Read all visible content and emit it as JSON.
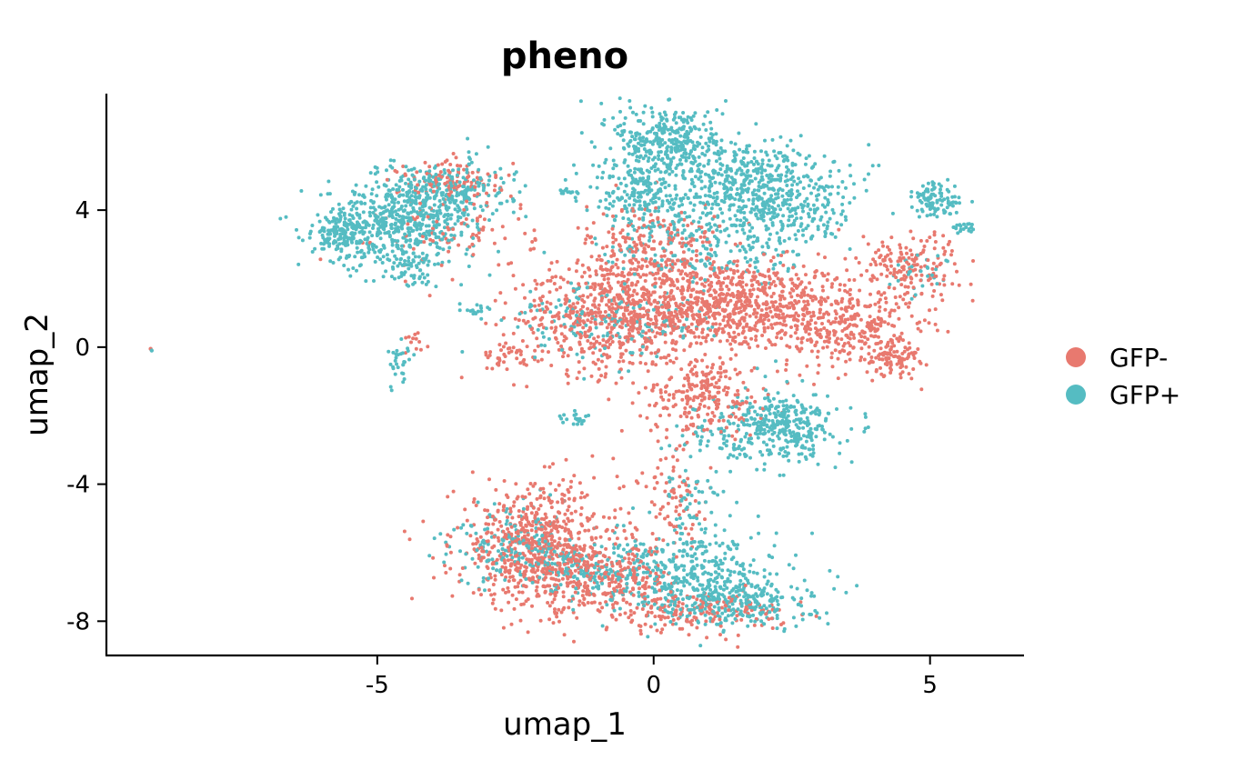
{
  "chart_data": {
    "type": "scatter",
    "title": "pheno",
    "xlabel": "umap_1",
    "ylabel": "umap_2",
    "xlim": [
      -9.9,
      6.7
    ],
    "ylim": [
      -9.0,
      7.4
    ],
    "xticks": [
      -5,
      0,
      5
    ],
    "xtick_labels": [
      "-5",
      "0",
      "5"
    ],
    "yticks": [
      -8,
      -4,
      0,
      4
    ],
    "ytick_labels": [
      "-8",
      "-4",
      "0",
      "4"
    ],
    "grid": false,
    "legend_position": "right",
    "series": [
      {
        "name": "GFP-",
        "color": "#E8796F",
        "clusters": [
          {
            "cx": 1.2,
            "cy": 1.2,
            "sx": 1.3,
            "sy": 0.65,
            "n": 1000
          },
          {
            "cx": -0.9,
            "cy": 0.8,
            "sx": 0.8,
            "sy": 0.8,
            "n": 400
          },
          {
            "cx": 3.6,
            "cy": 0.5,
            "sx": 0.6,
            "sy": 0.6,
            "n": 250
          },
          {
            "cx": 4.3,
            "cy": -0.3,
            "sx": 0.25,
            "sy": 0.25,
            "n": 90
          },
          {
            "cx": 0.0,
            "cy": 2.8,
            "sx": 0.6,
            "sy": 0.7,
            "n": 250
          },
          {
            "cx": 0.9,
            "cy": -1.4,
            "sx": 0.55,
            "sy": 0.6,
            "n": 250
          },
          {
            "cx": -2.1,
            "cy": -5.8,
            "sx": 0.75,
            "sy": 0.9,
            "n": 650
          },
          {
            "cx": -1.0,
            "cy": -6.7,
            "sx": 0.7,
            "sy": 0.45,
            "n": 250
          },
          {
            "cx": 0.6,
            "cy": -7.7,
            "sx": 0.9,
            "sy": 0.3,
            "n": 200
          },
          {
            "cx": 4.6,
            "cy": 2.4,
            "sx": 0.45,
            "sy": 0.5,
            "n": 160
          },
          {
            "cx": -3.6,
            "cy": 4.8,
            "sx": 0.5,
            "sy": 0.35,
            "n": 120
          },
          {
            "cx": -3.5,
            "cy": 3.3,
            "sx": 0.7,
            "sy": 0.5,
            "n": 80
          },
          {
            "cx": -2.6,
            "cy": -0.3,
            "sx": 0.25,
            "sy": 0.2,
            "n": 40
          },
          {
            "cx": 0.4,
            "cy": -4.5,
            "sx": 0.35,
            "sy": 0.7,
            "n": 80
          },
          {
            "cx": -4.4,
            "cy": 0.1,
            "sx": 0.15,
            "sy": 0.15,
            "n": 12
          }
        ]
      },
      {
        "name": "GFP+",
        "color": "#55BCC2",
        "clusters": [
          {
            "cx": -4.6,
            "cy": 3.6,
            "sx": 0.7,
            "sy": 0.6,
            "n": 550
          },
          {
            "cx": -5.7,
            "cy": 3.3,
            "sx": 0.22,
            "sy": 0.25,
            "n": 120
          },
          {
            "cx": -3.8,
            "cy": 4.6,
            "sx": 0.6,
            "sy": 0.45,
            "n": 220
          },
          {
            "cx": -4.5,
            "cy": 2.3,
            "sx": 0.3,
            "sy": 0.3,
            "n": 60
          },
          {
            "cx": 0.3,
            "cy": 6.1,
            "sx": 0.5,
            "sy": 0.5,
            "n": 300
          },
          {
            "cx": 1.7,
            "cy": 4.9,
            "sx": 0.8,
            "sy": 0.55,
            "n": 420
          },
          {
            "cx": -0.2,
            "cy": 4.6,
            "sx": 0.5,
            "sy": 0.6,
            "n": 220
          },
          {
            "cx": 2.2,
            "cy": 3.8,
            "sx": 0.7,
            "sy": 0.5,
            "n": 200
          },
          {
            "cx": 1.0,
            "cy": 3.0,
            "sx": 1.0,
            "sy": 0.7,
            "n": 200
          },
          {
            "cx": 2.4,
            "cy": -2.3,
            "sx": 0.45,
            "sy": 0.5,
            "n": 320
          },
          {
            "cx": 1.2,
            "cy": -2.6,
            "sx": 0.4,
            "sy": 0.4,
            "n": 80
          },
          {
            "cx": 0.6,
            "cy": -6.6,
            "sx": 0.8,
            "sy": 0.6,
            "n": 350
          },
          {
            "cx": 1.5,
            "cy": -7.4,
            "sx": 0.7,
            "sy": 0.4,
            "n": 280
          },
          {
            "cx": -2.5,
            "cy": -5.8,
            "sx": 0.55,
            "sy": 0.6,
            "n": 180
          },
          {
            "cx": -1.2,
            "cy": -6.5,
            "sx": 0.5,
            "sy": 0.4,
            "n": 120
          },
          {
            "cx": 5.1,
            "cy": 4.3,
            "sx": 0.25,
            "sy": 0.25,
            "n": 100
          },
          {
            "cx": 5.6,
            "cy": 3.5,
            "sx": 0.12,
            "sy": 0.12,
            "n": 20
          },
          {
            "cx": 4.9,
            "cy": 2.1,
            "sx": 0.3,
            "sy": 0.3,
            "n": 30
          },
          {
            "cx": -1.2,
            "cy": 0.8,
            "sx": 0.7,
            "sy": 0.6,
            "n": 100
          },
          {
            "cx": 0.0,
            "cy": 0.6,
            "sx": 0.6,
            "sy": 0.4,
            "n": 60
          },
          {
            "cx": -4.6,
            "cy": -0.4,
            "sx": 0.15,
            "sy": 0.35,
            "n": 30
          },
          {
            "cx": -3.3,
            "cy": 1.1,
            "sx": 0.15,
            "sy": 0.1,
            "n": 15
          },
          {
            "cx": -1.5,
            "cy": 4.5,
            "sx": 0.15,
            "sy": 0.1,
            "n": 12
          },
          {
            "cx": -1.4,
            "cy": -2.1,
            "sx": 0.15,
            "sy": 0.15,
            "n": 20
          },
          {
            "cx": 0.7,
            "cy": -4.5,
            "sx": 0.3,
            "sy": 0.5,
            "n": 50
          }
        ]
      }
    ]
  }
}
